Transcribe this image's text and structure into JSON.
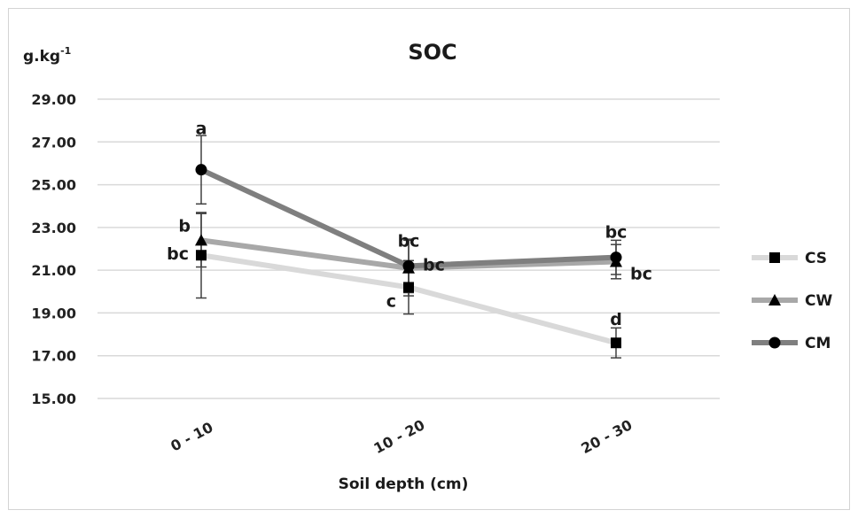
{
  "chart_data": {
    "type": "line",
    "title": "SOC",
    "ylabel": "g.kg",
    "ylabel_superscript": "-1",
    "xlabel": "Soil depth (cm)",
    "categories": [
      "0 - 10",
      "10 - 20",
      "20 - 30"
    ],
    "ylim": [
      15,
      29
    ],
    "yticks": [
      15,
      17,
      19,
      21,
      23,
      25,
      27,
      29
    ],
    "ytick_labels": [
      "15.00",
      "17.00",
      "19.00",
      "21.00",
      "23.00",
      "25.00",
      "27.00",
      "29.00"
    ],
    "grid": true,
    "legend_position": "right",
    "series": [
      {
        "name": "CS",
        "marker": "square",
        "line_color": "#d9d9d9",
        "values": [
          21.7,
          20.2,
          17.6
        ],
        "errors": [
          2.0,
          1.25,
          0.7
        ],
        "letters": [
          "bc",
          "c",
          "d"
        ]
      },
      {
        "name": "CW",
        "marker": "triangle",
        "line_color": "#a8a8a8",
        "values": [
          22.4,
          21.1,
          21.4
        ],
        "errors": [
          1.25,
          1.3,
          0.8
        ],
        "letters": [
          "b",
          "bc",
          "bc"
        ]
      },
      {
        "name": "CM",
        "marker": "circle",
        "line_color": "#7f7f7f",
        "values": [
          25.7,
          21.2,
          21.6
        ],
        "errors": [
          1.6,
          1.25,
          0.8
        ],
        "letters": [
          "a",
          "bc",
          "bc"
        ]
      }
    ]
  }
}
